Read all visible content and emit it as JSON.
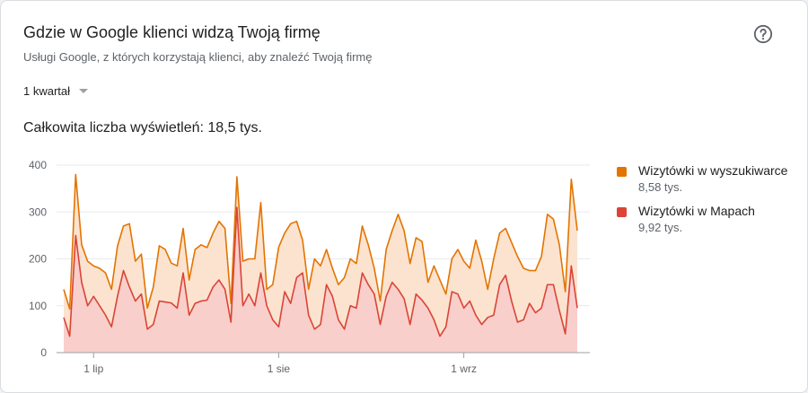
{
  "header": {
    "title": "Gdzie w Google klienci widzą Twoją firmę",
    "subtitle": "Usługi Google, z których korzystają klienci, aby znaleźć Twoją firmę",
    "help_icon": "help-circle-icon"
  },
  "period": {
    "selected": "1 kwartał"
  },
  "total": {
    "label": "Całkowita liczba wyświetleń: 18,5 tys."
  },
  "legend": {
    "items": [
      {
        "label": "Wizytówki w wyszukiwarce",
        "value": "8,58 tys.",
        "color": "#e37400"
      },
      {
        "label": "Wizytówki w Mapach",
        "value": "9,92 tys.",
        "color": "#db4437"
      }
    ]
  },
  "chart_data": {
    "type": "area",
    "stacked": true,
    "ylim": [
      0,
      400
    ],
    "yticks": [
      "0",
      "100",
      "200",
      "300",
      "400"
    ],
    "xticks": [
      {
        "label": "1 lip",
        "index": 5
      },
      {
        "label": "1 sie",
        "index": 36
      },
      {
        "label": "1 wrz",
        "index": 67
      }
    ],
    "grid": true,
    "series": [
      {
        "name": "Wizytówki w Mapach",
        "color": "#db4437",
        "fill": "#f8cfcb",
        "values": [
          75,
          35,
          250,
          150,
          100,
          120,
          100,
          80,
          55,
          120,
          175,
          140,
          110,
          125,
          50,
          60,
          110,
          108,
          106,
          95,
          170,
          80,
          105,
          110,
          112,
          140,
          155,
          135,
          65,
          310,
          100,
          125,
          100,
          170,
          100,
          70,
          55,
          130,
          105,
          160,
          170,
          80,
          50,
          60,
          145,
          120,
          70,
          50,
          100,
          95,
          170,
          145,
          125,
          60,
          120,
          150,
          135,
          115,
          60,
          125,
          112,
          95,
          70,
          35,
          55,
          130,
          125,
          95,
          110,
          80,
          60,
          75,
          80,
          145,
          165,
          110,
          65,
          70,
          105,
          85,
          95,
          145,
          145,
          90,
          40,
          185,
          95
        ]
      },
      {
        "name": "Wizytówki w wyszukiwarce",
        "color": "#e37400",
        "fill": "#fbe3cf",
        "values": [
          60,
          58,
          130,
          80,
          95,
          65,
          80,
          90,
          80,
          107,
          95,
          135,
          85,
          85,
          45,
          80,
          118,
          112,
          85,
          90,
          95,
          75,
          115,
          120,
          112,
          115,
          125,
          130,
          40,
          65,
          95,
          75,
          100,
          150,
          35,
          75,
          170,
          125,
          170,
          120,
          70,
          55,
          150,
          125,
          75,
          60,
          75,
          110,
          100,
          95,
          100,
          85,
          55,
          50,
          100,
          110,
          160,
          145,
          130,
          120,
          125,
          55,
          115,
          120,
          70,
          70,
          95,
          100,
          70,
          160,
          135,
          60,
          120,
          110,
          100,
          125,
          140,
          110,
          70,
          90,
          110,
          150,
          140,
          140,
          90,
          185,
          165
        ]
      }
    ]
  }
}
